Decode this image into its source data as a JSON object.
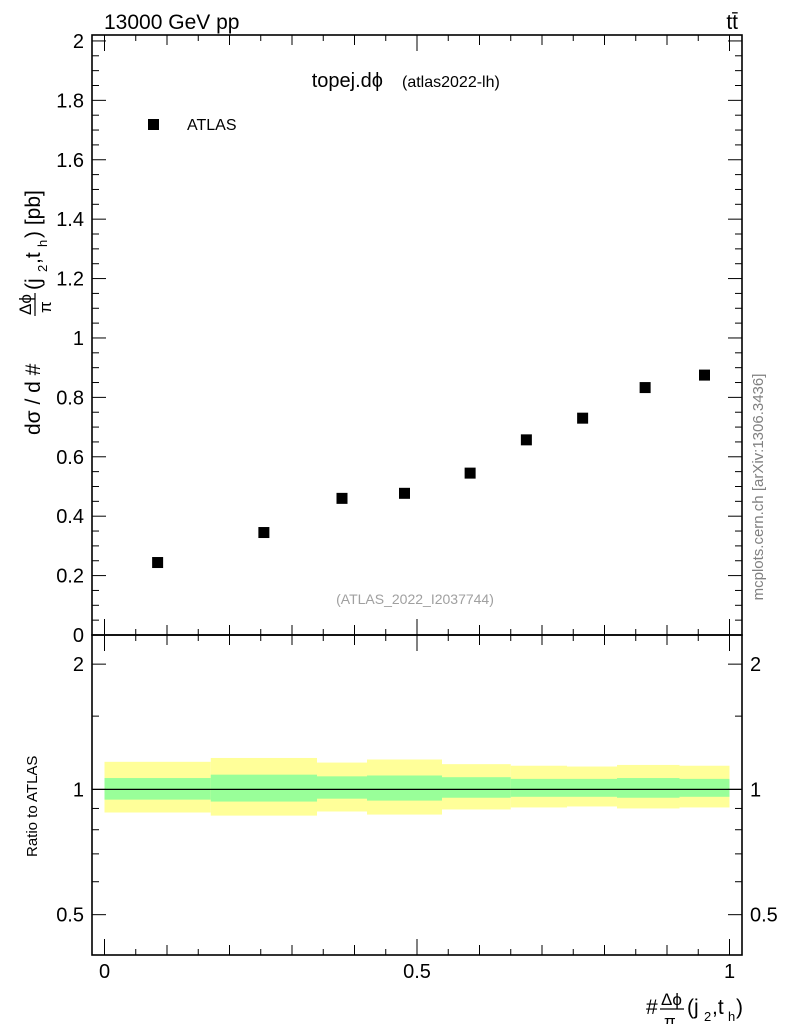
{
  "header": {
    "energy_label": "13000 GeV pp",
    "process_label": "tt̄"
  },
  "plot": {
    "title_main": "topej.dϕ",
    "title_sub": "(atlas2022-lh)",
    "legend_label": "ATLAS",
    "analysis_id": "(ATLAS_2022_I2037744)",
    "watermark": "mcplots.cern.ch [arXiv:1306.3436]",
    "ylabel_parts": {
      "prefix": "dσ / d #",
      "frac_num": "Δϕ",
      "frac_den": "π",
      "args": "(j",
      "sub1": "2",
      "mid": ",t",
      "sub2": "h",
      "suffix": ") [pb]"
    },
    "ratio_ylabel": "Ratio to ATLAS",
    "xlabel_parts": {
      "prefix": "#",
      "frac_num": "Δϕ",
      "frac_den": "π",
      "args": "(j",
      "sub1": "2",
      "mid": ",t",
      "sub2": "h",
      "suffix": ")"
    }
  },
  "chart_data": {
    "type": "scatter",
    "main": {
      "series": [
        {
          "name": "ATLAS",
          "x": [
            0.085,
            0.255,
            0.38,
            0.48,
            0.585,
            0.675,
            0.765,
            0.865,
            0.96
          ],
          "y": [
            0.244,
            0.345,
            0.46,
            0.477,
            0.545,
            0.657,
            0.73,
            0.833,
            0.875
          ]
        }
      ],
      "xlim": [
        -0.02,
        1.02
      ],
      "ylim": [
        0,
        2.02
      ],
      "yticks": [
        0,
        0.2,
        0.4,
        0.6,
        0.8,
        1,
        1.2,
        1.4,
        1.6,
        1.8,
        2
      ],
      "ytick_labels": [
        "0",
        "0.2",
        "0.4",
        "0.6",
        "0.8",
        "1",
        "1.2",
        "1.4",
        "1.6",
        "1.8",
        "2"
      ]
    },
    "ratio": {
      "log_scale": true,
      "ylim": [
        0.4,
        2.35
      ],
      "yticks": [
        0.5,
        1,
        2
      ],
      "ytick_labels": [
        "0.5",
        "1",
        "2"
      ],
      "reference_line": 1,
      "bins": [
        {
          "x0": 0.0,
          "x1": 0.17,
          "inner": [
            0.945,
            1.065
          ],
          "outer": [
            0.88,
            1.165
          ]
        },
        {
          "x0": 0.17,
          "x1": 0.34,
          "inner": [
            0.935,
            1.085
          ],
          "outer": [
            0.865,
            1.19
          ]
        },
        {
          "x0": 0.34,
          "x1": 0.42,
          "inner": [
            0.95,
            1.075
          ],
          "outer": [
            0.885,
            1.16
          ]
        },
        {
          "x0": 0.42,
          "x1": 0.54,
          "inner": [
            0.94,
            1.08
          ],
          "outer": [
            0.87,
            1.18
          ]
        },
        {
          "x0": 0.54,
          "x1": 0.65,
          "inner": [
            0.955,
            1.07
          ],
          "outer": [
            0.895,
            1.15
          ]
        },
        {
          "x0": 0.65,
          "x1": 0.74,
          "inner": [
            0.96,
            1.06
          ],
          "outer": [
            0.905,
            1.14
          ]
        },
        {
          "x0": 0.74,
          "x1": 0.82,
          "inner": [
            0.96,
            1.06
          ],
          "outer": [
            0.91,
            1.135
          ]
        },
        {
          "x0": 0.82,
          "x1": 0.92,
          "inner": [
            0.955,
            1.065
          ],
          "outer": [
            0.9,
            1.145
          ]
        },
        {
          "x0": 0.92,
          "x1": 1.0,
          "inner": [
            0.96,
            1.06
          ],
          "outer": [
            0.905,
            1.14
          ]
        }
      ],
      "inner_color": "#99ff99",
      "outer_color": "#ffff99"
    },
    "x_axis": {
      "ticks": [
        0,
        0.5,
        1
      ],
      "tick_labels": [
        "0",
        "0.5",
        "1"
      ]
    },
    "marker_color": "#000000"
  }
}
